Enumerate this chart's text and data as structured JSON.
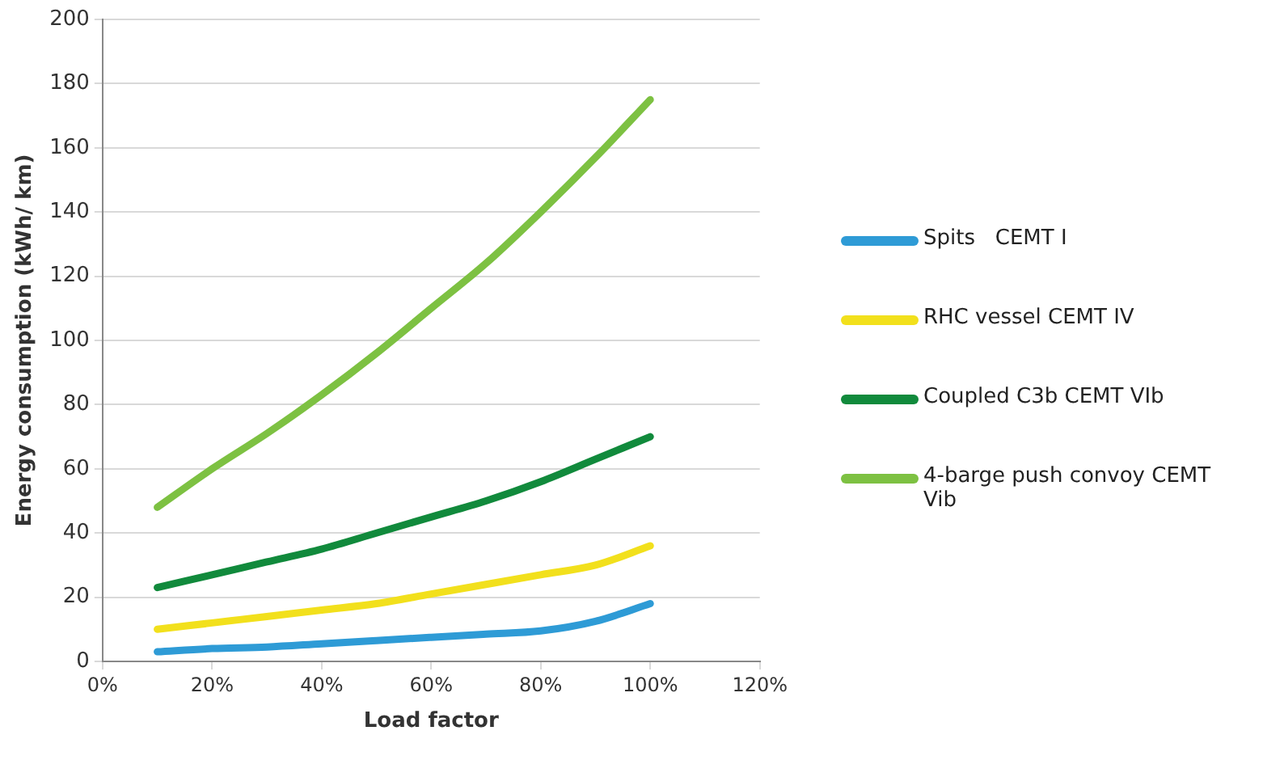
{
  "chart_data": {
    "type": "line",
    "xlabel": "Load factor",
    "ylabel": "Energy consumption (kWh/ km)",
    "x": [
      10,
      20,
      30,
      40,
      50,
      60,
      70,
      80,
      90,
      100
    ],
    "series": [
      {
        "name": "Spits   CEMT I",
        "color": "#2e9bd6",
        "values": [
          3,
          4,
          4.5,
          5.5,
          6.5,
          7.5,
          8.5,
          9.5,
          12.5,
          18
        ]
      },
      {
        "name": "RHC vessel CEMT IV",
        "color": "#f2e01c",
        "values": [
          10,
          12,
          14,
          16,
          18,
          21,
          24,
          27,
          30,
          36
        ]
      },
      {
        "name": "Coupled C3b CEMT VIb",
        "color": "#118a3c",
        "values": [
          23,
          27,
          31,
          35,
          40,
          45,
          50,
          56,
          63,
          70
        ]
      },
      {
        "name": "4-barge push convoy CEMT Vib",
        "color": "#7dc142",
        "values": [
          48,
          60,
          71,
          83,
          96,
          110,
          124,
          140,
          157,
          175
        ]
      }
    ],
    "xlim": [
      0,
      120
    ],
    "xticks": [
      {
        "value": 0,
        "label": "0%"
      },
      {
        "value": 20,
        "label": "20%"
      },
      {
        "value": 40,
        "label": "40%"
      },
      {
        "value": 60,
        "label": "60%"
      },
      {
        "value": 80,
        "label": "80%"
      },
      {
        "value": 100,
        "label": "100%"
      },
      {
        "value": 120,
        "label": "120%"
      }
    ],
    "ylim": [
      0,
      200
    ],
    "yticks": [
      0,
      20,
      40,
      60,
      80,
      100,
      120,
      140,
      160,
      180,
      200
    ],
    "grid": "y",
    "legend": "right",
    "marker": "none",
    "line_style": "solid"
  }
}
